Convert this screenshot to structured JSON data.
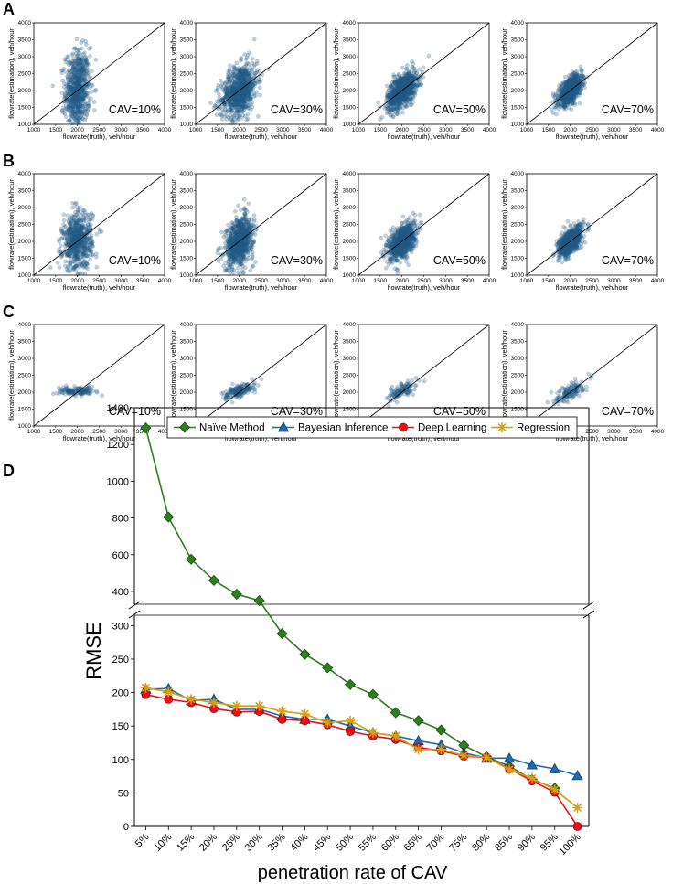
{
  "panels": [
    "A",
    "B",
    "C",
    "D"
  ],
  "chart_data": [
    {
      "type": "scatter",
      "id": "scatter_grid",
      "rows": [
        {
          "panel": "A",
          "spread": "wide",
          "cav": [
            "CAV=10%",
            "CAV=30%",
            "CAV=50%",
            "CAV=70%"
          ]
        },
        {
          "panel": "B",
          "spread": "medium",
          "cav": [
            "CAV=10%",
            "CAV=30%",
            "CAV=50%",
            "CAV=70%"
          ]
        },
        {
          "panel": "C",
          "spread": "narrow",
          "cav": [
            "CAV=10%",
            "CAV=30%",
            "CAV=50%",
            "CAV=70%"
          ]
        }
      ],
      "xlabel": "flowrate(truth), veh/hour",
      "ylabel": "flowrate(estimation), veh/hour",
      "xticks": [
        "1000",
        "1500",
        "2000",
        "2500",
        "3000",
        "3500",
        "4000"
      ],
      "yticks": [
        "1000",
        "1500",
        "2000",
        "2500",
        "3000",
        "3500",
        "4000"
      ],
      "xlim": [
        1000,
        4000
      ],
      "ylim": [
        1000,
        4000
      ],
      "reference_line": "y = x",
      "point_color": "#1f5a85"
    },
    {
      "type": "line",
      "id": "rmse_chart",
      "panel": "D",
      "ylabel": "RMSE",
      "xlabel": "penetration rate of CAV",
      "categories": [
        "5%",
        "10%",
        "15%",
        "20%",
        "25%",
        "30%",
        "35%",
        "40%",
        "45%",
        "50%",
        "55%",
        "60%",
        "65%",
        "70%",
        "75%",
        "80%",
        "85%",
        "90%",
        "95%",
        "100%"
      ],
      "y_upper_ticks": [
        "400",
        "600",
        "800",
        "1000",
        "1200",
        "1400"
      ],
      "y_lower_ticks": [
        "0",
        "50",
        "100",
        "150",
        "200",
        "250",
        "300"
      ],
      "y_break": [
        310,
        310
      ],
      "legend_position": "top",
      "series": [
        {
          "name": "Naive Method",
          "label": "Naïve Method",
          "color": "#2e7d1f",
          "marker": "diamond",
          "values": [
            1290,
            805,
            575,
            460,
            385,
            350,
            288,
            257,
            237,
            212,
            197,
            170,
            158,
            144,
            121,
            104,
            90,
            70,
            57,
            null
          ]
        },
        {
          "name": "Bayesian Inference",
          "label": "Bayesian Inference",
          "color": "#1f6db0",
          "marker": "triangle",
          "values": [
            205,
            206,
            188,
            190,
            175,
            175,
            165,
            160,
            160,
            150,
            140,
            135,
            128,
            122,
            110,
            102,
            102,
            92,
            86,
            76
          ]
        },
        {
          "name": "Deep Learning",
          "label": "Deep Learning",
          "color": "#e8101a",
          "marker": "circle",
          "values": [
            197,
            190,
            185,
            176,
            171,
            172,
            160,
            158,
            152,
            142,
            135,
            130,
            118,
            113,
            105,
            103,
            86,
            68,
            51,
            0
          ]
        },
        {
          "name": "Regression",
          "label": "Regression",
          "color": "#d8a010",
          "marker": "star",
          "values": [
            207,
            201,
            190,
            185,
            180,
            180,
            172,
            168,
            155,
            158,
            140,
            135,
            115,
            115,
            106,
            103,
            85,
            72,
            55,
            28
          ]
        }
      ]
    }
  ]
}
